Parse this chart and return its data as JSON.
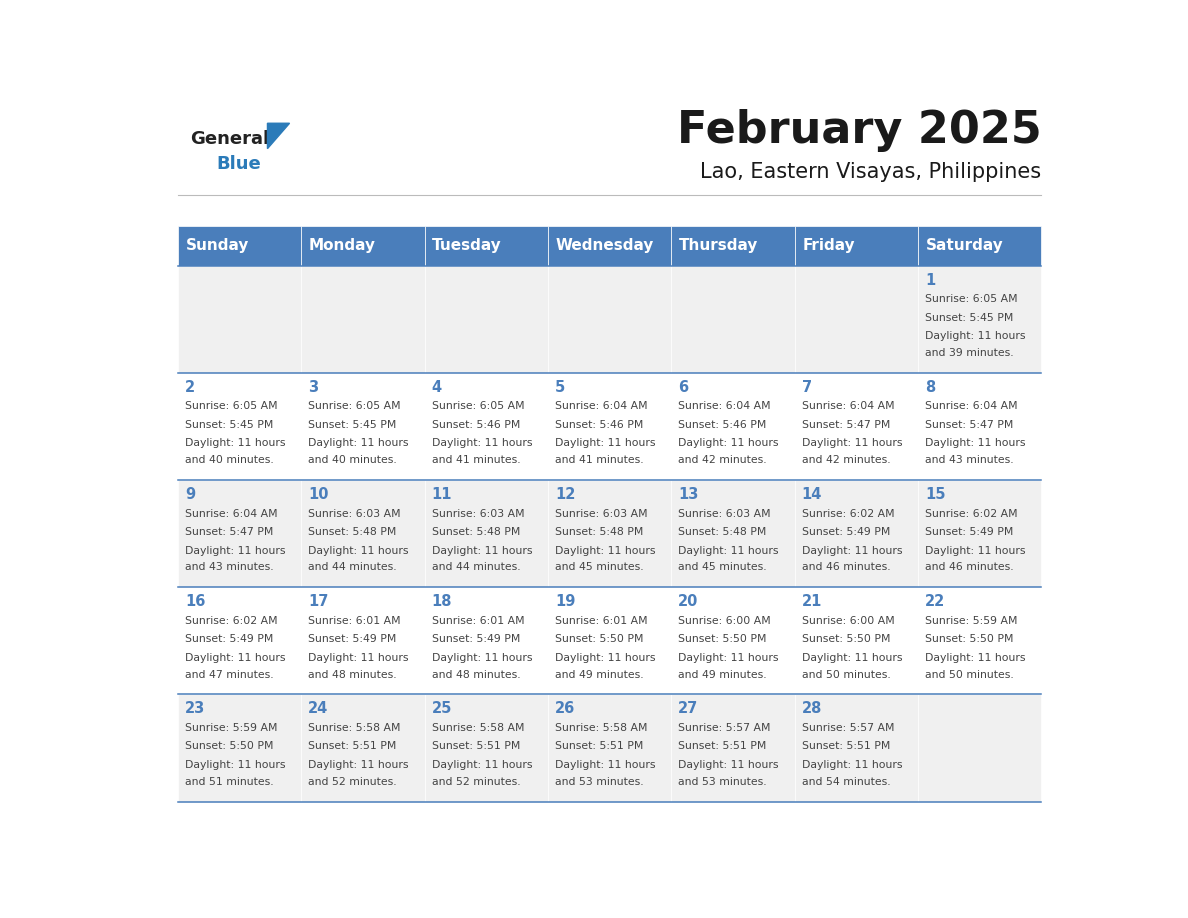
{
  "title": "February 2025",
  "subtitle": "Lao, Eastern Visayas, Philippines",
  "days_of_week": [
    "Sunday",
    "Monday",
    "Tuesday",
    "Wednesday",
    "Thursday",
    "Friday",
    "Saturday"
  ],
  "header_bg": "#4A7EBB",
  "header_text": "#FFFFFF",
  "row_bg_odd": "#F0F0F0",
  "row_bg_even": "#FFFFFF",
  "border_color": "#4A7EBB",
  "day_num_color": "#4A7EBB",
  "text_color": "#444444",
  "logo_general_color": "#222222",
  "logo_blue_color": "#2B7BB9",
  "logo_triangle_color": "#2B7BB9",
  "calendar": [
    [
      null,
      null,
      null,
      null,
      null,
      null,
      {
        "day": 1,
        "sunrise": "6:05 AM",
        "sunset": "5:45 PM",
        "daylight": "11 hours and 39 minutes."
      }
    ],
    [
      {
        "day": 2,
        "sunrise": "6:05 AM",
        "sunset": "5:45 PM",
        "daylight": "11 hours and 40 minutes."
      },
      {
        "day": 3,
        "sunrise": "6:05 AM",
        "sunset": "5:45 PM",
        "daylight": "11 hours and 40 minutes."
      },
      {
        "day": 4,
        "sunrise": "6:05 AM",
        "sunset": "5:46 PM",
        "daylight": "11 hours and 41 minutes."
      },
      {
        "day": 5,
        "sunrise": "6:04 AM",
        "sunset": "5:46 PM",
        "daylight": "11 hours and 41 minutes."
      },
      {
        "day": 6,
        "sunrise": "6:04 AM",
        "sunset": "5:46 PM",
        "daylight": "11 hours and 42 minutes."
      },
      {
        "day": 7,
        "sunrise": "6:04 AM",
        "sunset": "5:47 PM",
        "daylight": "11 hours and 42 minutes."
      },
      {
        "day": 8,
        "sunrise": "6:04 AM",
        "sunset": "5:47 PM",
        "daylight": "11 hours and 43 minutes."
      }
    ],
    [
      {
        "day": 9,
        "sunrise": "6:04 AM",
        "sunset": "5:47 PM",
        "daylight": "11 hours and 43 minutes."
      },
      {
        "day": 10,
        "sunrise": "6:03 AM",
        "sunset": "5:48 PM",
        "daylight": "11 hours and 44 minutes."
      },
      {
        "day": 11,
        "sunrise": "6:03 AM",
        "sunset": "5:48 PM",
        "daylight": "11 hours and 44 minutes."
      },
      {
        "day": 12,
        "sunrise": "6:03 AM",
        "sunset": "5:48 PM",
        "daylight": "11 hours and 45 minutes."
      },
      {
        "day": 13,
        "sunrise": "6:03 AM",
        "sunset": "5:48 PM",
        "daylight": "11 hours and 45 minutes."
      },
      {
        "day": 14,
        "sunrise": "6:02 AM",
        "sunset": "5:49 PM",
        "daylight": "11 hours and 46 minutes."
      },
      {
        "day": 15,
        "sunrise": "6:02 AM",
        "sunset": "5:49 PM",
        "daylight": "11 hours and 46 minutes."
      }
    ],
    [
      {
        "day": 16,
        "sunrise": "6:02 AM",
        "sunset": "5:49 PM",
        "daylight": "11 hours and 47 minutes."
      },
      {
        "day": 17,
        "sunrise": "6:01 AM",
        "sunset": "5:49 PM",
        "daylight": "11 hours and 48 minutes."
      },
      {
        "day": 18,
        "sunrise": "6:01 AM",
        "sunset": "5:49 PM",
        "daylight": "11 hours and 48 minutes."
      },
      {
        "day": 19,
        "sunrise": "6:01 AM",
        "sunset": "5:50 PM",
        "daylight": "11 hours and 49 minutes."
      },
      {
        "day": 20,
        "sunrise": "6:00 AM",
        "sunset": "5:50 PM",
        "daylight": "11 hours and 49 minutes."
      },
      {
        "day": 21,
        "sunrise": "6:00 AM",
        "sunset": "5:50 PM",
        "daylight": "11 hours and 50 minutes."
      },
      {
        "day": 22,
        "sunrise": "5:59 AM",
        "sunset": "5:50 PM",
        "daylight": "11 hours and 50 minutes."
      }
    ],
    [
      {
        "day": 23,
        "sunrise": "5:59 AM",
        "sunset": "5:50 PM",
        "daylight": "11 hours and 51 minutes."
      },
      {
        "day": 24,
        "sunrise": "5:58 AM",
        "sunset": "5:51 PM",
        "daylight": "11 hours and 52 minutes."
      },
      {
        "day": 25,
        "sunrise": "5:58 AM",
        "sunset": "5:51 PM",
        "daylight": "11 hours and 52 minutes."
      },
      {
        "day": 26,
        "sunrise": "5:58 AM",
        "sunset": "5:51 PM",
        "daylight": "11 hours and 53 minutes."
      },
      {
        "day": 27,
        "sunrise": "5:57 AM",
        "sunset": "5:51 PM",
        "daylight": "11 hours and 53 minutes."
      },
      {
        "day": 28,
        "sunrise": "5:57 AM",
        "sunset": "5:51 PM",
        "daylight": "11 hours and 54 minutes."
      },
      null
    ]
  ]
}
